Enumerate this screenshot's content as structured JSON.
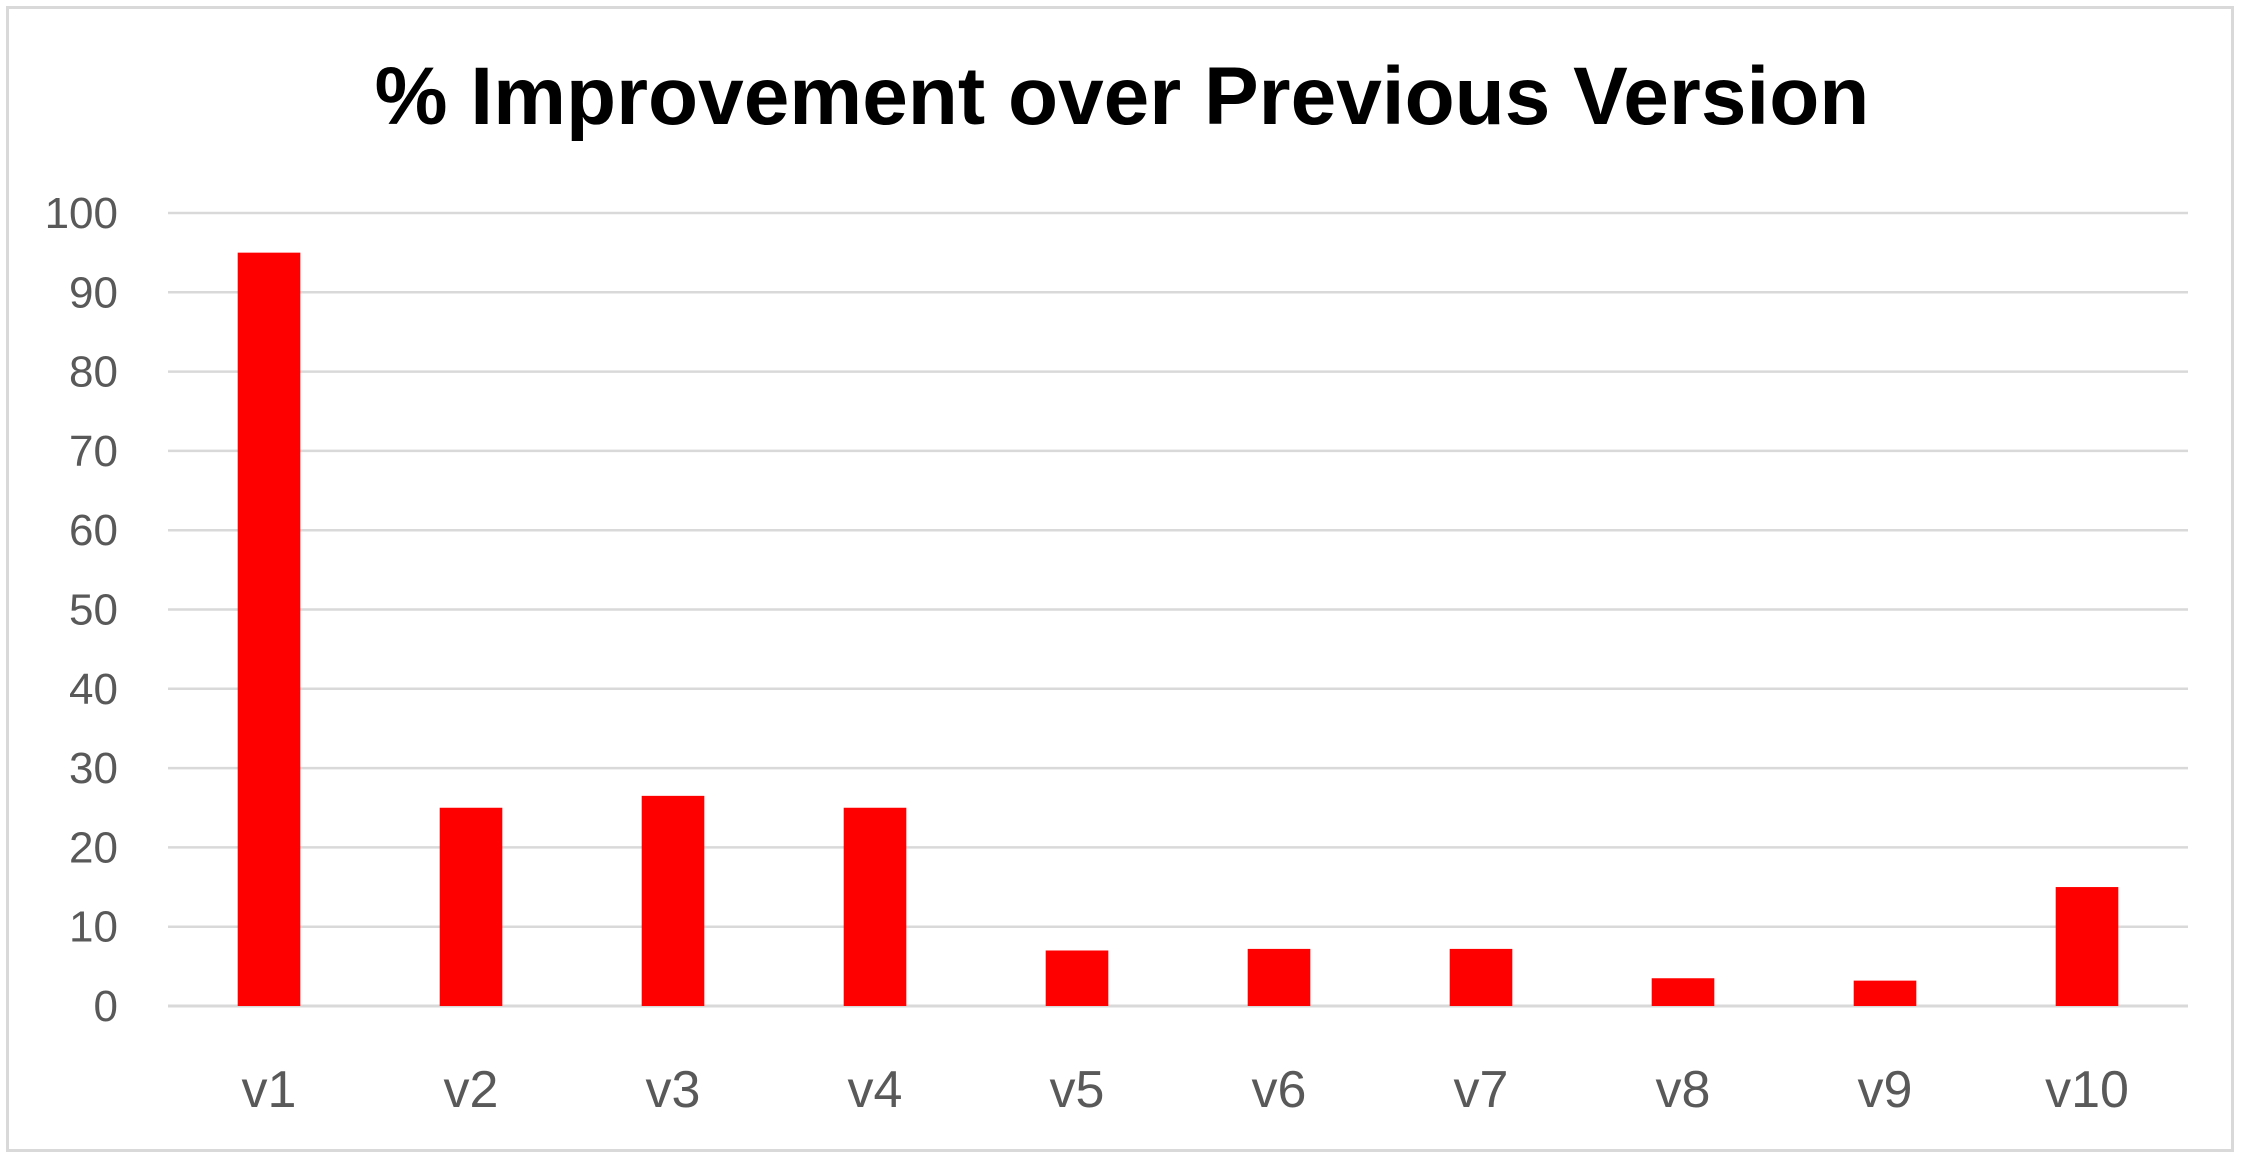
{
  "chart_data": {
    "type": "bar",
    "title": "% Improvement over Previous Version",
    "xlabel": "",
    "ylabel": "",
    "categories": [
      "v1",
      "v2",
      "v3",
      "v4",
      "v5",
      "v6",
      "v7",
      "v8",
      "v9",
      "v10"
    ],
    "values": [
      95,
      25,
      26.5,
      25,
      7,
      7.2,
      7.2,
      3.5,
      3.2,
      15
    ],
    "ylim": [
      0,
      100
    ],
    "yticks": [
      0,
      10,
      20,
      30,
      40,
      50,
      60,
      70,
      80,
      90,
      100
    ],
    "grid": true,
    "legend": "none",
    "bar_color": "#ff0000"
  }
}
